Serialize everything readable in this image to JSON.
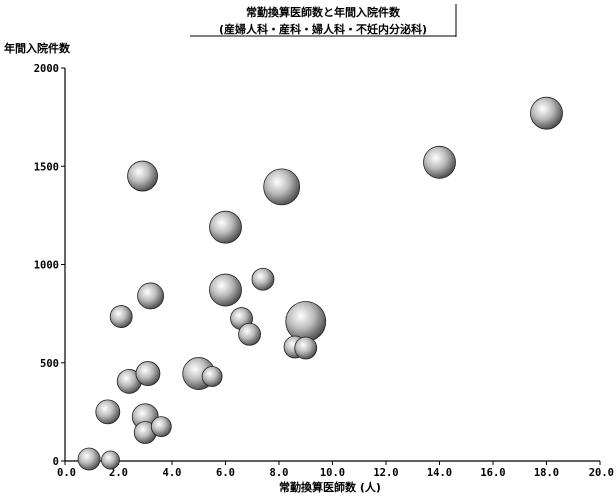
{
  "chart_data": {
    "type": "scatter",
    "title": "常勤換算医師数と年間入院件数",
    "subtitle": "(産婦人科・産科・婦人科・不妊内分泌科)",
    "xlabel": "常勤換算医師数 (人)",
    "ylabel": "年間入院件数",
    "xlim": [
      0,
      20
    ],
    "ylim": [
      0,
      2000
    ],
    "x_ticks": [
      "0.0",
      "2.0",
      "4.0",
      "6.0",
      "8.0",
      "10.0",
      "12.0",
      "14.0",
      "16.0",
      "18.0",
      "20.0"
    ],
    "y_ticks": [
      "0",
      "500",
      "1000",
      "1500",
      "2000"
    ],
    "grid": false,
    "marker": "bubble",
    "points": [
      {
        "x": 0.9,
        "y": 10,
        "r": 11
      },
      {
        "x": 1.7,
        "y": 5,
        "r": 9
      },
      {
        "x": 1.6,
        "y": 250,
        "r": 12
      },
      {
        "x": 2.1,
        "y": 735,
        "r": 11
      },
      {
        "x": 2.4,
        "y": 405,
        "r": 12
      },
      {
        "x": 2.9,
        "y": 1450,
        "r": 15
      },
      {
        "x": 3.0,
        "y": 225,
        "r": 13
      },
      {
        "x": 3.0,
        "y": 145,
        "r": 11
      },
      {
        "x": 3.1,
        "y": 445,
        "r": 12
      },
      {
        "x": 3.2,
        "y": 840,
        "r": 13
      },
      {
        "x": 3.6,
        "y": 175,
        "r": 10
      },
      {
        "x": 5.0,
        "y": 445,
        "r": 16
      },
      {
        "x": 5.5,
        "y": 430,
        "r": 10
      },
      {
        "x": 6.0,
        "y": 1190,
        "r": 16
      },
      {
        "x": 6.0,
        "y": 870,
        "r": 16
      },
      {
        "x": 6.6,
        "y": 725,
        "r": 11
      },
      {
        "x": 6.9,
        "y": 645,
        "r": 11
      },
      {
        "x": 7.4,
        "y": 925,
        "r": 11
      },
      {
        "x": 8.1,
        "y": 1395,
        "r": 18
      },
      {
        "x": 8.6,
        "y": 580,
        "r": 11
      },
      {
        "x": 9.0,
        "y": 575,
        "r": 11
      },
      {
        "x": 9.0,
        "y": 710,
        "r": 20
      },
      {
        "x": 14.0,
        "y": 1520,
        "r": 16
      },
      {
        "x": 18.0,
        "y": 1770,
        "r": 16
      }
    ],
    "colors": {
      "bubble_light": "#ffffff",
      "bubble_mid": "#bcbcbc",
      "bubble_dark": "#3a3a3a",
      "axis": "#000000"
    }
  }
}
